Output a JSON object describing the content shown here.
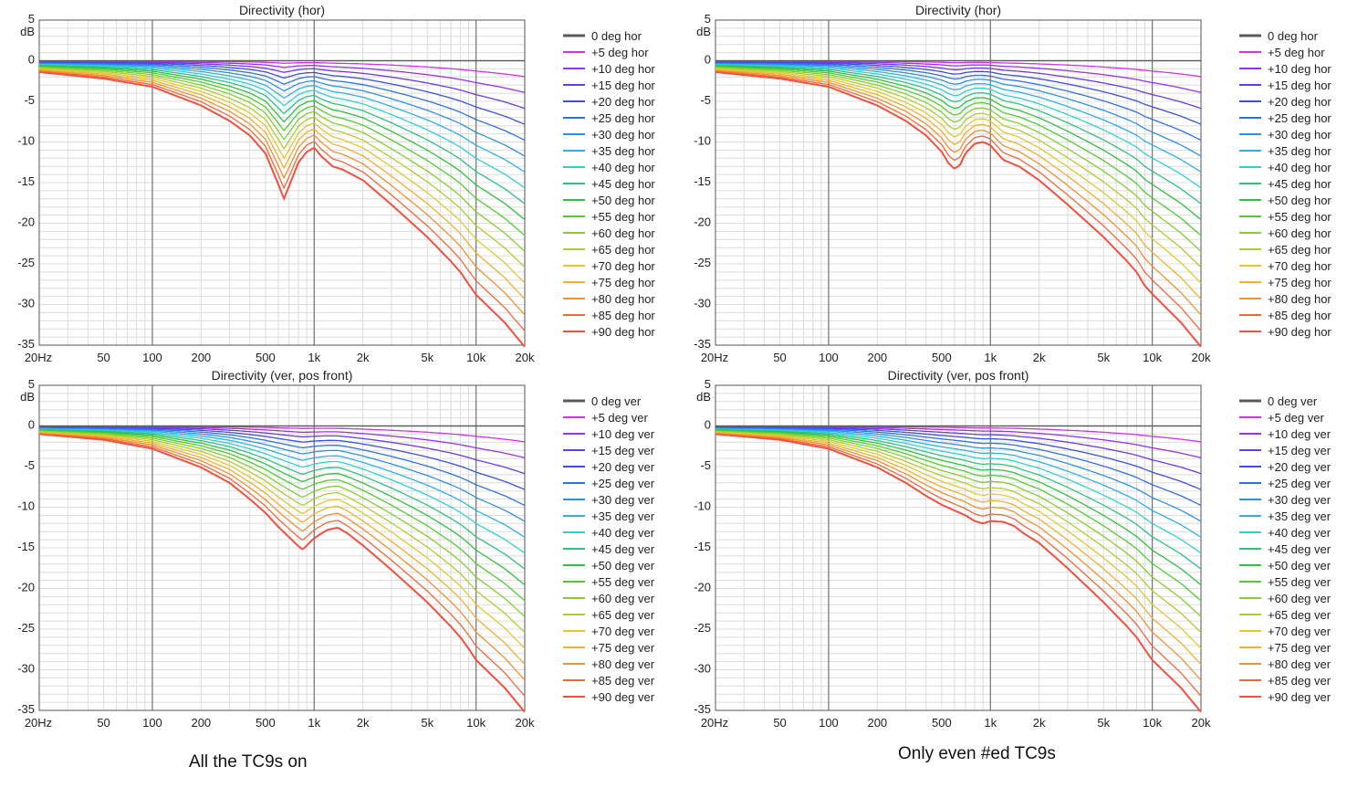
{
  "captions": {
    "left": "All the TC9s on",
    "right": "Only even #ed TC9s"
  },
  "colors": {
    "background": "#ffffff",
    "grid_minor": "#dcdcdc",
    "grid_major": "#7a7a7a",
    "axis": "#555555",
    "series": [
      "#595959",
      "#d030f0",
      "#9a30f0",
      "#6a3ae8",
      "#3a50e0",
      "#3070e0",
      "#3090e0",
      "#30b0e0",
      "#30d0d0",
      "#30c080",
      "#30c040",
      "#50cc30",
      "#80d030",
      "#b0cc30",
      "#e0c830",
      "#f0b030",
      "#f09030",
      "#f06838",
      "#f05040",
      "#ee2a2a"
    ]
  },
  "chart_data": [
    {
      "type": "line",
      "title": "Directivity (hor)",
      "ylabel": "dB",
      "xlim": [
        20,
        20000
      ],
      "ylim": [
        -35,
        5
      ],
      "xscale": "log",
      "xticks": [
        "20Hz",
        "50",
        "100",
        "200",
        "500",
        "1k",
        "2k",
        "5k",
        "10k",
        "20k"
      ],
      "xtick_values": [
        20,
        50,
        100,
        200,
        500,
        1000,
        2000,
        5000,
        10000,
        20000
      ],
      "yticks": [
        "5",
        "0",
        "-5",
        "-10",
        "-15",
        "-20",
        "-25",
        "-30",
        "-35"
      ],
      "ytick_values": [
        5,
        0,
        -5,
        -10,
        -15,
        -20,
        -25,
        -30,
        -35
      ],
      "legend": [
        "0 deg hor",
        "+5 deg hor",
        "+10 deg hor",
        "+15 deg hor",
        "+20 deg hor",
        "+25 deg hor",
        "+30 deg hor",
        "+35 deg hor",
        "+40 deg hor",
        "+45 deg hor",
        "+50 deg hor",
        "+55 deg hor",
        "+60 deg hor",
        "+65 deg hor",
        "+70 deg hor",
        "+75 deg hor",
        "+80 deg hor",
        "+85 deg hor",
        "+90 deg hor"
      ],
      "outer_series_x": [
        20,
        50,
        100,
        200,
        300,
        400,
        500,
        600,
        650,
        700,
        800,
        900,
        1000,
        1100,
        1300,
        1500,
        2000,
        3000,
        5000,
        7000,
        8000,
        9000,
        10000,
        15000,
        20000
      ],
      "outer_series_y": [
        -1.2,
        -2.0,
        -3.0,
        -5.3,
        -7.2,
        -9.0,
        -11.2,
        -15.0,
        -16.8,
        -15.2,
        -12.3,
        -11.0,
        -10.5,
        -11.5,
        -12.8,
        -13.2,
        -14.5,
        -17.5,
        -21.5,
        -24.5,
        -25.8,
        -27.3,
        -28.6,
        -32.0,
        -35.0
      ]
    },
    {
      "type": "line",
      "title": "Directivity (hor)",
      "ylabel": "dB",
      "xlim": [
        20,
        20000
      ],
      "ylim": [
        -35,
        5
      ],
      "xscale": "log",
      "xticks": [
        "20Hz",
        "50",
        "100",
        "200",
        "500",
        "1k",
        "2k",
        "5k",
        "10k",
        "20k"
      ],
      "xtick_values": [
        20,
        50,
        100,
        200,
        500,
        1000,
        2000,
        5000,
        10000,
        20000
      ],
      "yticks": [
        "5",
        "0",
        "-5",
        "-10",
        "-15",
        "-20",
        "-25",
        "-30",
        "-35"
      ],
      "ytick_values": [
        5,
        0,
        -5,
        -10,
        -15,
        -20,
        -25,
        -30,
        -35
      ],
      "legend": [
        "0 deg hor",
        "+5 deg hor",
        "+10 deg hor",
        "+15 deg hor",
        "+20 deg hor",
        "+25 deg hor",
        "+30 deg hor",
        "+35 deg hor",
        "+40 deg hor",
        "+45 deg hor",
        "+50 deg hor",
        "+55 deg hor",
        "+60 deg hor",
        "+65 deg hor",
        "+70 deg hor",
        "+75 deg hor",
        "+80 deg hor",
        "+85 deg hor",
        "+90 deg hor"
      ],
      "outer_series_x": [
        20,
        50,
        100,
        200,
        300,
        400,
        500,
        550,
        600,
        650,
        700,
        800,
        900,
        1000,
        1200,
        1500,
        2000,
        3000,
        5000,
        7000,
        8000,
        9000,
        10000,
        15000,
        20000
      ],
      "outer_series_y": [
        -1.2,
        -2.0,
        -3.0,
        -5.3,
        -7.2,
        -9.0,
        -11.0,
        -12.4,
        -13.1,
        -12.6,
        -11.2,
        -10.0,
        -9.8,
        -10.2,
        -12.0,
        -12.8,
        -14.5,
        -17.5,
        -21.5,
        -24.5,
        -25.8,
        -27.5,
        -28.5,
        -32.0,
        -35.0
      ]
    },
    {
      "type": "line",
      "title": "Directivity (ver, pos front)",
      "ylabel": "dB",
      "xlim": [
        20,
        20000
      ],
      "ylim": [
        -35,
        5
      ],
      "xscale": "log",
      "xticks": [
        "20Hz",
        "50",
        "100",
        "200",
        "500",
        "1k",
        "2k",
        "5k",
        "10k",
        "20k"
      ],
      "xtick_values": [
        20,
        50,
        100,
        200,
        500,
        1000,
        2000,
        5000,
        10000,
        20000
      ],
      "yticks": [
        "5",
        "0",
        "-5",
        "-10",
        "-15",
        "-20",
        "-25",
        "-30",
        "-35"
      ],
      "ytick_values": [
        5,
        0,
        -5,
        -10,
        -15,
        -20,
        -25,
        -30,
        -35
      ],
      "legend": [
        "0 deg ver",
        "+5 deg ver",
        "+10 deg ver",
        "+15 deg ver",
        "+20 deg ver",
        "+25 deg ver",
        "+30 deg ver",
        "+35 deg ver",
        "+40 deg ver",
        "+45 deg ver",
        "+50 deg ver",
        "+55 deg ver",
        "+60 deg ver",
        "+65 deg ver",
        "+70 deg ver",
        "+75 deg ver",
        "+80 deg ver",
        "+85 deg ver",
        "+90 deg ver"
      ],
      "outer_series_x": [
        20,
        50,
        100,
        200,
        300,
        400,
        500,
        600,
        700,
        800,
        850,
        900,
        1000,
        1200,
        1400,
        1600,
        2000,
        3000,
        5000,
        7000,
        8000,
        9000,
        10000,
        15000,
        20000
      ],
      "outer_series_y": [
        -0.8,
        -1.5,
        -2.6,
        -4.9,
        -6.8,
        -8.8,
        -10.5,
        -12.2,
        -13.5,
        -14.6,
        -15.0,
        -14.5,
        -13.6,
        -12.6,
        -12.3,
        -13.0,
        -14.5,
        -17.5,
        -21.5,
        -24.5,
        -25.8,
        -27.2,
        -28.6,
        -32.0,
        -35.0
      ]
    },
    {
      "type": "line",
      "title": "Directivity (ver, pos front)",
      "ylabel": "dB",
      "xlim": [
        20,
        20000
      ],
      "ylim": [
        -35,
        5
      ],
      "xscale": "log",
      "xticks": [
        "20Hz",
        "50",
        "100",
        "200",
        "500",
        "1k",
        "2k",
        "5k",
        "10k",
        "20k"
      ],
      "xtick_values": [
        20,
        50,
        100,
        200,
        500,
        1000,
        2000,
        5000,
        10000,
        20000
      ],
      "yticks": [
        "5",
        "0",
        "-5",
        "-10",
        "-15",
        "-20",
        "-25",
        "-30",
        "-35"
      ],
      "ytick_values": [
        5,
        0,
        -5,
        -10,
        -15,
        -20,
        -25,
        -30,
        -35
      ],
      "legend": [
        "0 deg ver",
        "+5 deg ver",
        "+10 deg ver",
        "+15 deg ver",
        "+20 deg ver",
        "+25 deg ver",
        "+30 deg ver",
        "+35 deg ver",
        "+40 deg ver",
        "+45 deg ver",
        "+50 deg ver",
        "+55 deg ver",
        "+60 deg ver",
        "+65 deg ver",
        "+70 deg ver",
        "+75 deg ver",
        "+80 deg ver",
        "+85 deg ver",
        "+90 deg ver"
      ],
      "outer_series_x": [
        20,
        50,
        100,
        200,
        300,
        400,
        500,
        600,
        700,
        800,
        900,
        1000,
        1200,
        1400,
        1600,
        2000,
        3000,
        5000,
        7000,
        8000,
        9000,
        10000,
        15000,
        20000
      ],
      "outer_series_y": [
        -0.8,
        -1.5,
        -2.6,
        -4.9,
        -6.8,
        -8.4,
        -9.5,
        -10.2,
        -10.8,
        -11.5,
        -11.8,
        -11.5,
        -11.6,
        -12.1,
        -13.0,
        -14.2,
        -17.3,
        -21.5,
        -24.5,
        -25.8,
        -27.3,
        -28.6,
        -32.0,
        -35.0
      ]
    }
  ]
}
